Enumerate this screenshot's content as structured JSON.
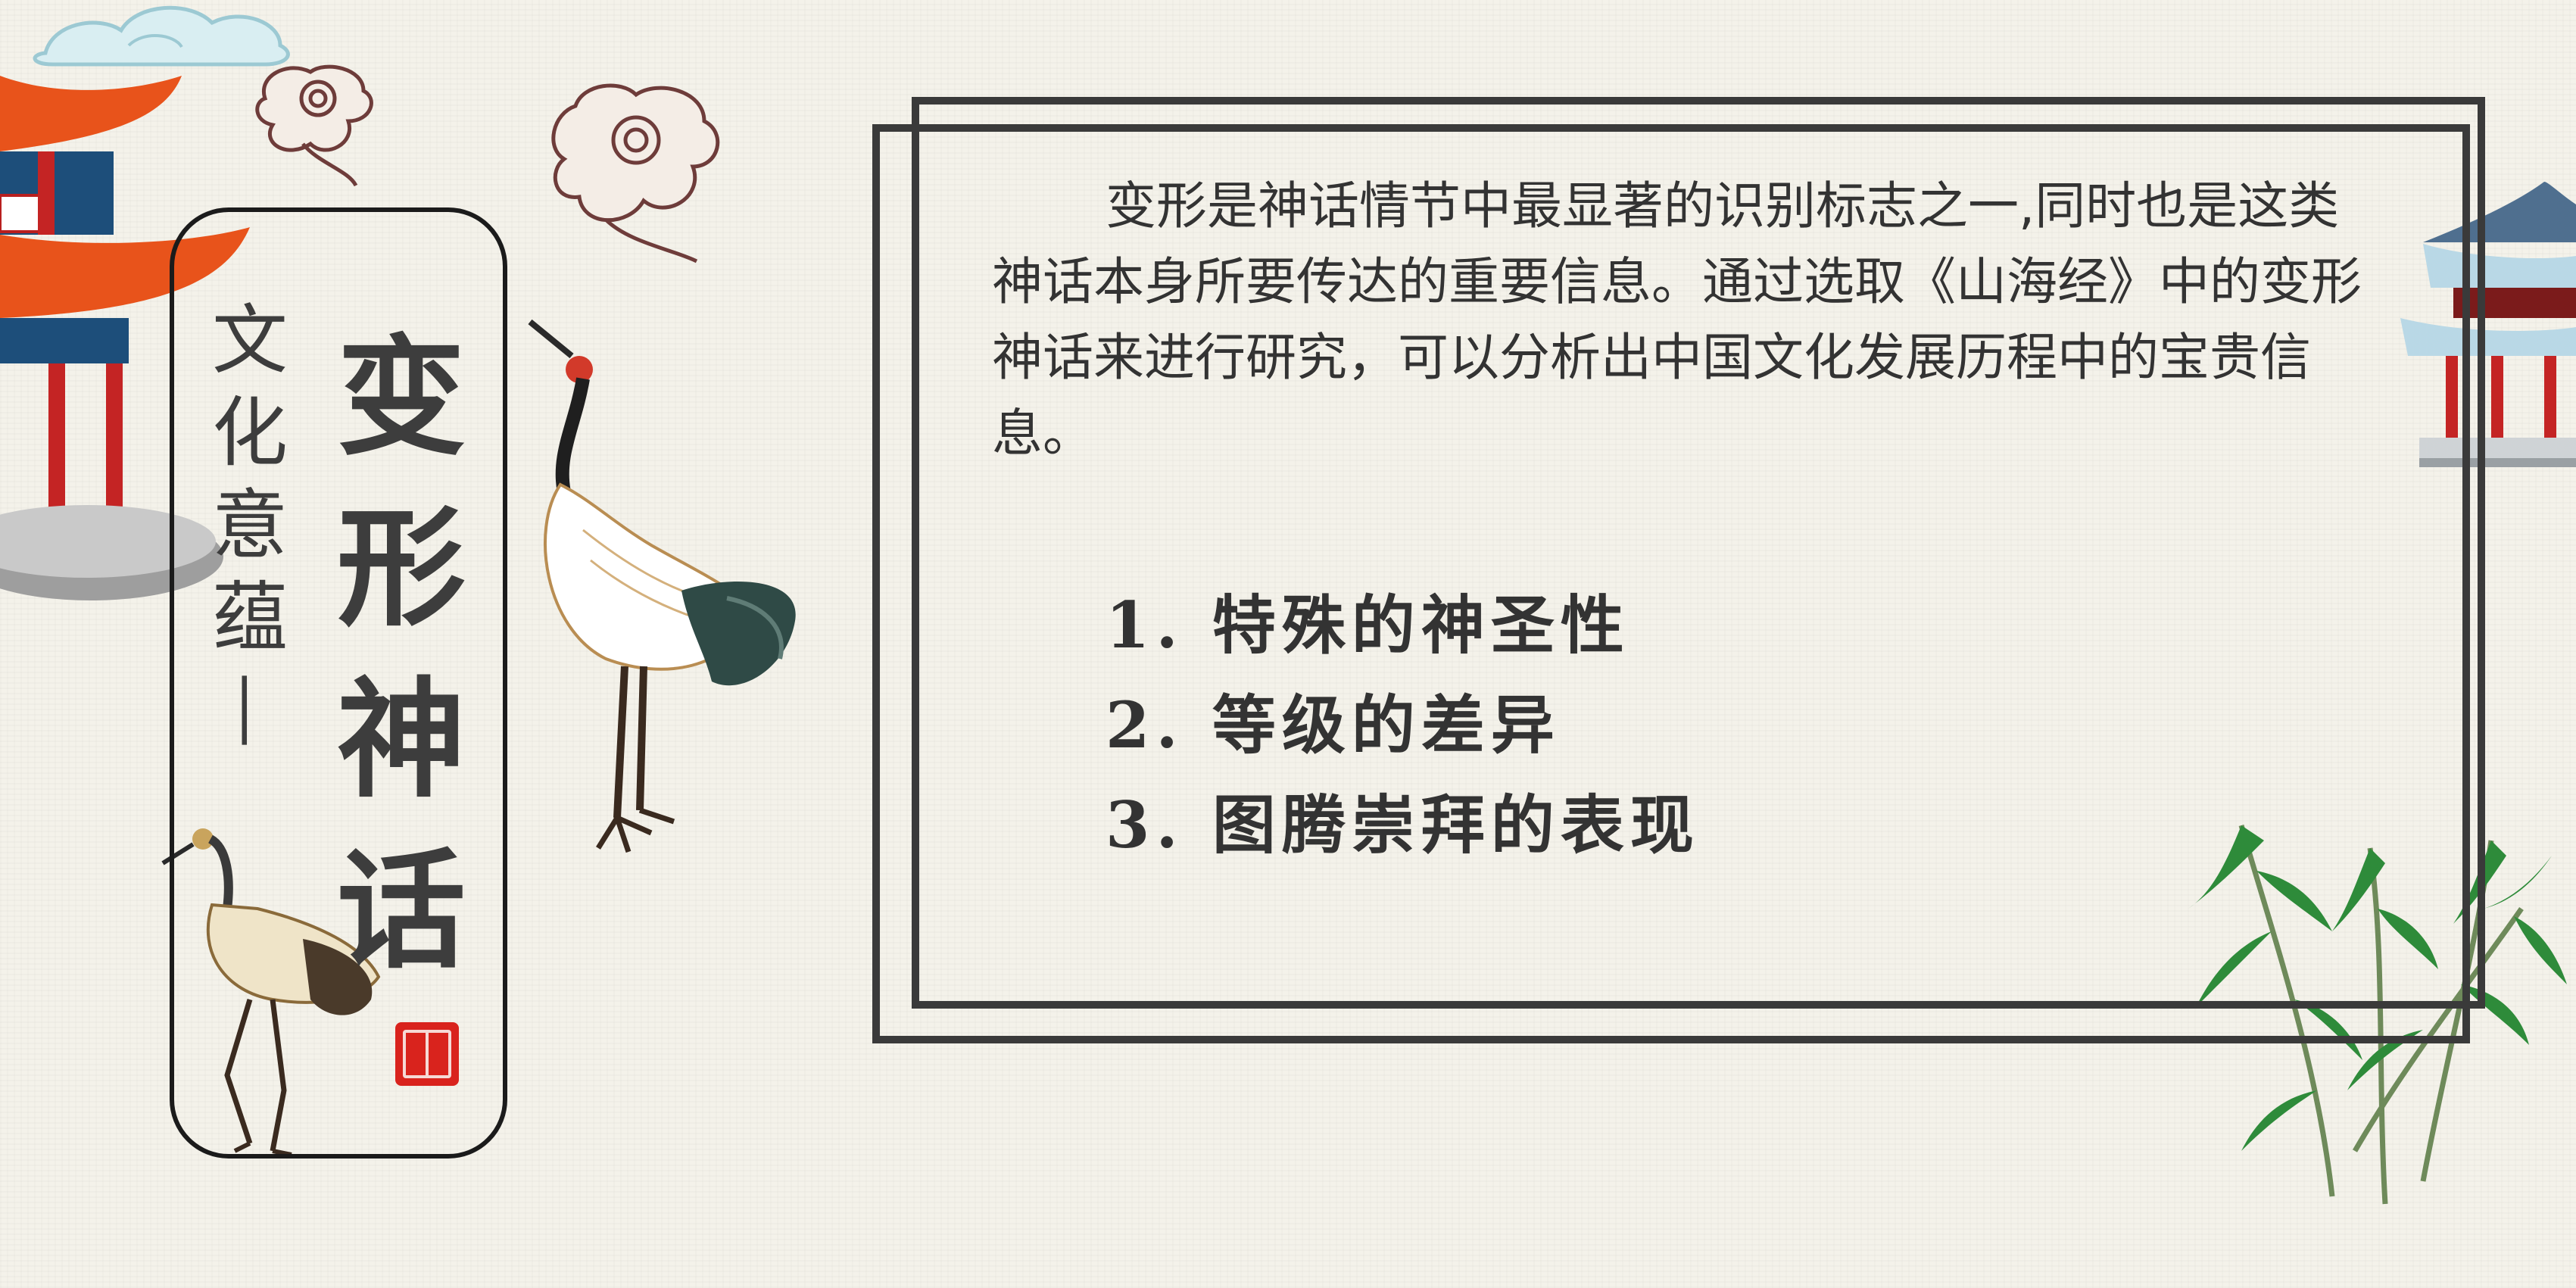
{
  "title": {
    "subtitle_chars": [
      "文",
      "化",
      "意",
      "蕴",
      "—"
    ],
    "main_chars": [
      "变",
      "形",
      "神",
      "话"
    ]
  },
  "paragraph": "变形是神话情节中最显著的识别标志之一,同时也是这类神话本身所要传达的重要信息。通过选取《山海经》中的变形神话来进行研究，可以分析出中国文化发展历程中的宝贵信息。",
  "list": [
    "1. 特殊的神圣性",
    "2. 等级的差异",
    "3. 图腾崇拜的表现"
  ],
  "colors": {
    "background": "#f4f2ea",
    "frame": "#3a3a3a",
    "text": "#333333",
    "seal": "#d9231d"
  },
  "decorations": [
    "pagoda-left",
    "pagoda-right",
    "crane-standing",
    "crane-small",
    "cloud-swirl",
    "blue-cloud",
    "bamboo-plant",
    "red-seal"
  ]
}
